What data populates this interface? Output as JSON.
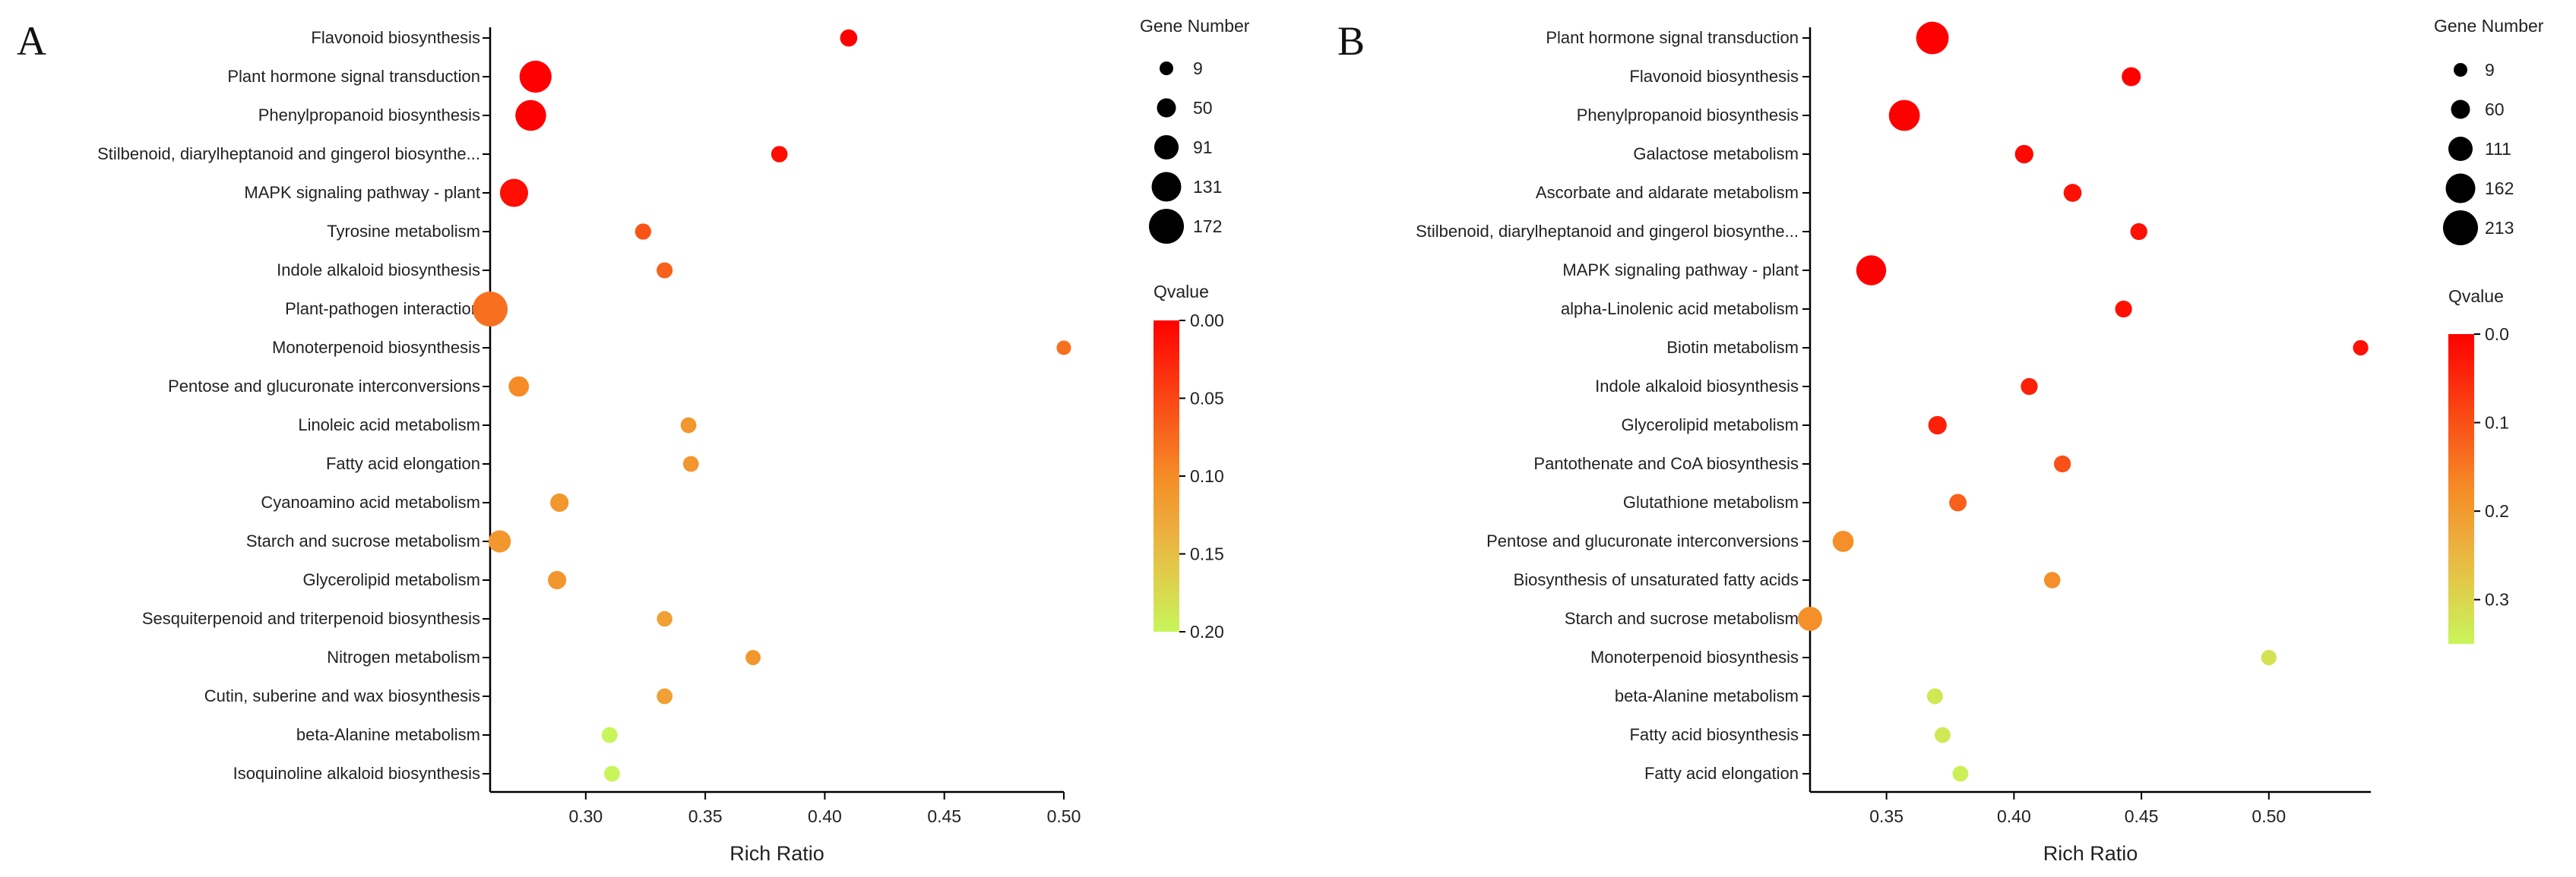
{
  "chart_data": [
    {
      "type": "scatter",
      "panel_label": "A",
      "xlabel": "Rich Ratio",
      "xlim": [
        0.26,
        0.5
      ],
      "xticks": [
        0.3,
        0.35,
        0.4,
        0.45,
        0.5
      ],
      "xtick_labels": [
        "0.30",
        "0.35",
        "0.40",
        "0.45",
        "0.50"
      ],
      "size_legend": {
        "title": "Gene Number",
        "values": [
          9,
          50,
          91,
          131,
          172
        ],
        "labels": [
          "9",
          "50",
          "91",
          "131",
          "172"
        ]
      },
      "color_legend": {
        "title": "Qvalue",
        "min": 0.0,
        "max": 0.2,
        "ticks": [
          "0.00",
          "0.05",
          "0.10",
          "0.15",
          "0.20"
        ]
      },
      "points": [
        {
          "term": "Flavonoid biosynthesis",
          "rich_ratio": 0.41,
          "gene_number": 36,
          "qvalue": 0.0
        },
        {
          "term": "Plant hormone signal transduction",
          "rich_ratio": 0.279,
          "gene_number": 150,
          "qvalue": 0.0
        },
        {
          "term": "Phenylpropanoid biosynthesis",
          "rich_ratio": 0.277,
          "gene_number": 140,
          "qvalue": 0.0
        },
        {
          "term": "Stilbenoid, diarylheptanoid and gingerol biosynthe...",
          "rich_ratio": 0.381,
          "gene_number": 30,
          "qvalue": 0.01
        },
        {
          "term": "MAPK signaling pathway - plant",
          "rich_ratio": 0.27,
          "gene_number": 120,
          "qvalue": 0.01
        },
        {
          "term": "Tyrosine metabolism",
          "rich_ratio": 0.324,
          "gene_number": 28,
          "qvalue": 0.06
        },
        {
          "term": "Indole alkaloid biosynthesis",
          "rich_ratio": 0.333,
          "gene_number": 27,
          "qvalue": 0.07
        },
        {
          "term": "Plant-pathogen interaction",
          "rich_ratio": 0.26,
          "gene_number": 172,
          "qvalue": 0.08
        },
        {
          "term": "Monoterpenoid biosynthesis",
          "rich_ratio": 0.5,
          "gene_number": 15,
          "qvalue": 0.08
        },
        {
          "term": "Pentose and glucuronate interconversions",
          "rich_ratio": 0.272,
          "gene_number": 60,
          "qvalue": 0.1
        },
        {
          "term": "Linoleic acid metabolism",
          "rich_ratio": 0.343,
          "gene_number": 25,
          "qvalue": 0.11
        },
        {
          "term": "Fatty acid elongation",
          "rich_ratio": 0.344,
          "gene_number": 25,
          "qvalue": 0.11
        },
        {
          "term": "Cyanoamino acid metabolism",
          "rich_ratio": 0.289,
          "gene_number": 45,
          "qvalue": 0.11
        },
        {
          "term": "Starch and sucrose metabolism",
          "rich_ratio": 0.264,
          "gene_number": 75,
          "qvalue": 0.11
        },
        {
          "term": "Glycerolipid metabolism",
          "rich_ratio": 0.288,
          "gene_number": 45,
          "qvalue": 0.11
        },
        {
          "term": "Sesquiterpenoid and triterpenoid biosynthesis",
          "rich_ratio": 0.333,
          "gene_number": 24,
          "qvalue": 0.12
        },
        {
          "term": "Nitrogen metabolism",
          "rich_ratio": 0.37,
          "gene_number": 20,
          "qvalue": 0.11
        },
        {
          "term": "Cutin, suberine and wax biosynthesis",
          "rich_ratio": 0.333,
          "gene_number": 25,
          "qvalue": 0.12
        },
        {
          "term": "beta-Alanine metabolism",
          "rich_ratio": 0.31,
          "gene_number": 25,
          "qvalue": 0.2
        },
        {
          "term": "Isoquinoline alkaloid biosynthesis",
          "rich_ratio": 0.311,
          "gene_number": 25,
          "qvalue": 0.2
        }
      ]
    },
    {
      "type": "scatter",
      "panel_label": "B",
      "xlabel": "Rich Ratio",
      "xlim": [
        0.32,
        0.54
      ],
      "xticks": [
        0.35,
        0.4,
        0.45,
        0.5
      ],
      "xtick_labels": [
        "0.35",
        "0.40",
        "0.45",
        "0.50"
      ],
      "size_legend": {
        "title": "Gene Number",
        "values": [
          9,
          60,
          111,
          162,
          213
        ],
        "labels": [
          "9",
          "60",
          "111",
          "162",
          "213"
        ]
      },
      "color_legend": {
        "title": "Qvalue",
        "min": 0.0,
        "max": 0.35,
        "ticks": [
          "0.0",
          "0.1",
          "0.2",
          "0.3"
        ]
      },
      "points": [
        {
          "term": "Plant hormone signal transduction",
          "rich_ratio": 0.368,
          "gene_number": 190,
          "qvalue": 0.0
        },
        {
          "term": "Flavonoid biosynthesis",
          "rich_ratio": 0.446,
          "gene_number": 60,
          "qvalue": 0.0
        },
        {
          "term": "Phenylpropanoid biosynthesis",
          "rich_ratio": 0.357,
          "gene_number": 175,
          "qvalue": 0.0
        },
        {
          "term": "Galactose metabolism",
          "rich_ratio": 0.404,
          "gene_number": 55,
          "qvalue": 0.01
        },
        {
          "term": "Ascorbate and aldarate metabolism",
          "rich_ratio": 0.423,
          "gene_number": 50,
          "qvalue": 0.02
        },
        {
          "term": "Stilbenoid, diarylheptanoid and gingerol biosynthe...",
          "rich_ratio": 0.449,
          "gene_number": 40,
          "qvalue": 0.02
        },
        {
          "term": "MAPK signaling pathway - plant",
          "rich_ratio": 0.344,
          "gene_number": 165,
          "qvalue": 0.0
        },
        {
          "term": "alpha-Linolenic acid metabolism",
          "rich_ratio": 0.443,
          "gene_number": 40,
          "qvalue": 0.02
        },
        {
          "term": "Biotin metabolism",
          "rich_ratio": 0.536,
          "gene_number": 25,
          "qvalue": 0.02
        },
        {
          "term": "Indole alkaloid biosynthesis",
          "rich_ratio": 0.406,
          "gene_number": 40,
          "qvalue": 0.04
        },
        {
          "term": "Glycerolipid metabolism",
          "rich_ratio": 0.37,
          "gene_number": 55,
          "qvalue": 0.04
        },
        {
          "term": "Pantothenate and CoA biosynthesis",
          "rich_ratio": 0.419,
          "gene_number": 40,
          "qvalue": 0.1
        },
        {
          "term": "Glutathione metabolism",
          "rich_ratio": 0.378,
          "gene_number": 45,
          "qvalue": 0.12
        },
        {
          "term": "Pentose and glucuronate interconversions",
          "rich_ratio": 0.333,
          "gene_number": 80,
          "qvalue": 0.18
        },
        {
          "term": "Biosynthesis of unsaturated fatty acids",
          "rich_ratio": 0.415,
          "gene_number": 35,
          "qvalue": 0.18
        },
        {
          "term": "Starch and sucrose metabolism",
          "rich_ratio": 0.32,
          "gene_number": 110,
          "qvalue": 0.18
        },
        {
          "term": "Monoterpenoid biosynthesis",
          "rich_ratio": 0.5,
          "gene_number": 25,
          "qvalue": 0.32
        },
        {
          "term": "beta-Alanine metabolism",
          "rich_ratio": 0.369,
          "gene_number": 30,
          "qvalue": 0.33
        },
        {
          "term": "Fatty acid biosynthesis",
          "rich_ratio": 0.372,
          "gene_number": 30,
          "qvalue": 0.33
        },
        {
          "term": "Fatty acid elongation",
          "rich_ratio": 0.379,
          "gene_number": 30,
          "qvalue": 0.34
        }
      ]
    }
  ]
}
